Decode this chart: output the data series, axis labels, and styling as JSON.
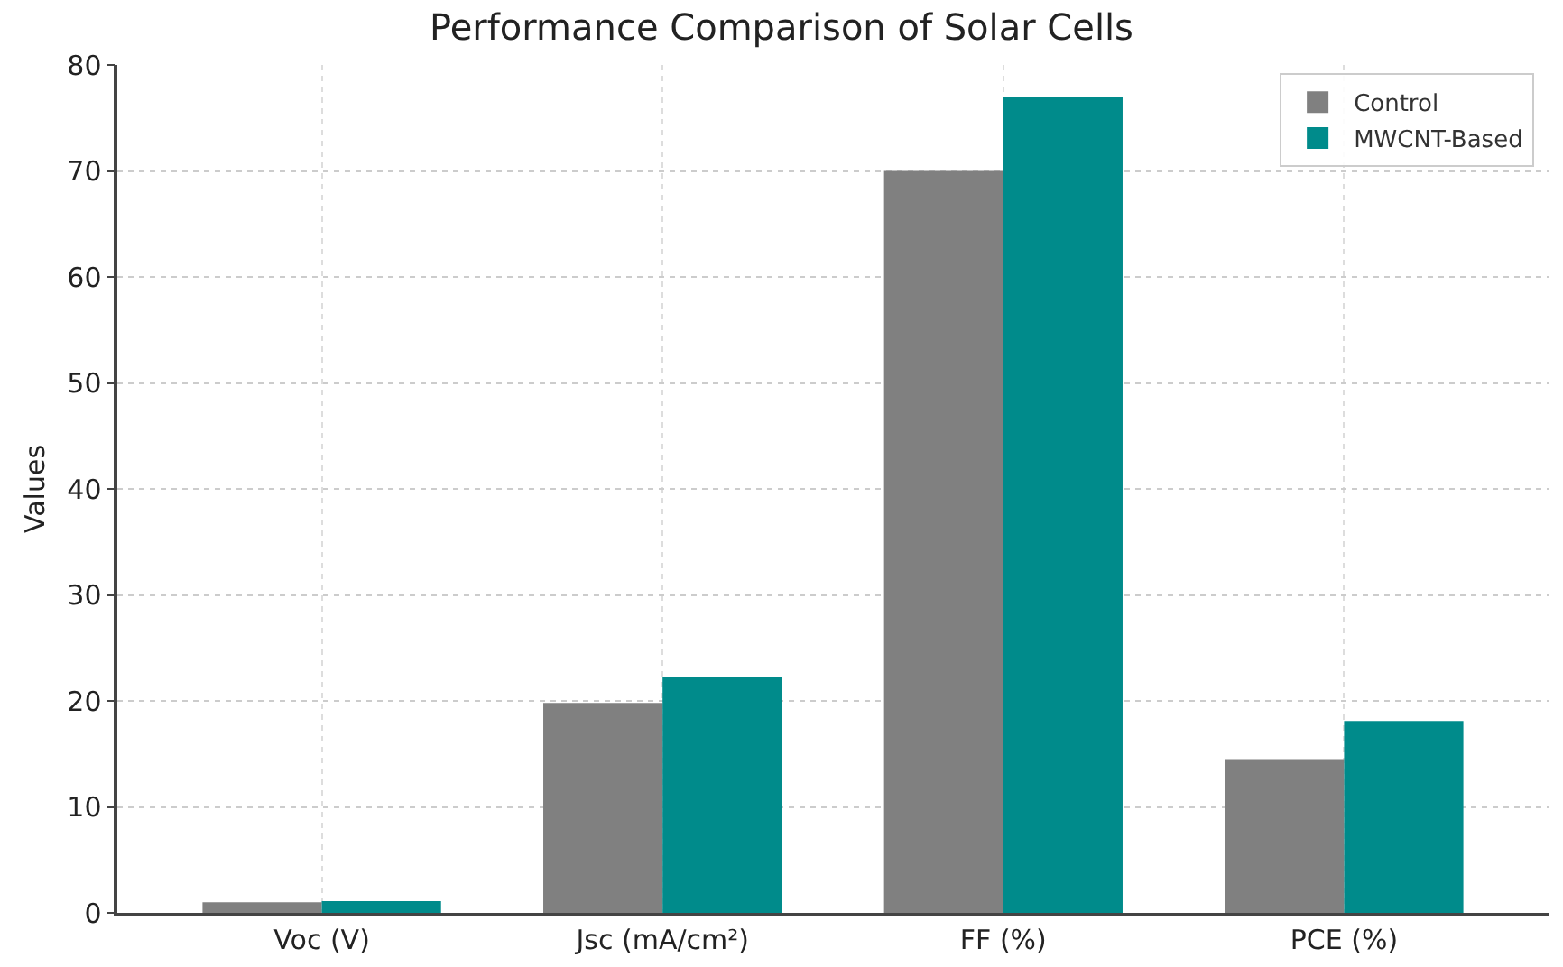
{
  "chart_data": {
    "type": "bar",
    "title": "Performance Comparison of Solar Cells",
    "ylabel": "Values",
    "categories": [
      "Voc (V)",
      "Jsc (mA/cm²)",
      "FF (%)",
      "PCE (%)"
    ],
    "series": [
      {
        "name": "Control",
        "color": "#808080",
        "values": [
          1.0,
          19.8,
          70,
          14.5
        ]
      },
      {
        "name": "MWCNT-Based",
        "color": "#008b8b",
        "values": [
          1.1,
          22.3,
          77,
          18.1
        ]
      }
    ],
    "ylim": [
      0,
      80
    ],
    "yticks": [
      0,
      10,
      20,
      30,
      40,
      50,
      60,
      70,
      80
    ],
    "grid": true,
    "legend": "top right"
  }
}
